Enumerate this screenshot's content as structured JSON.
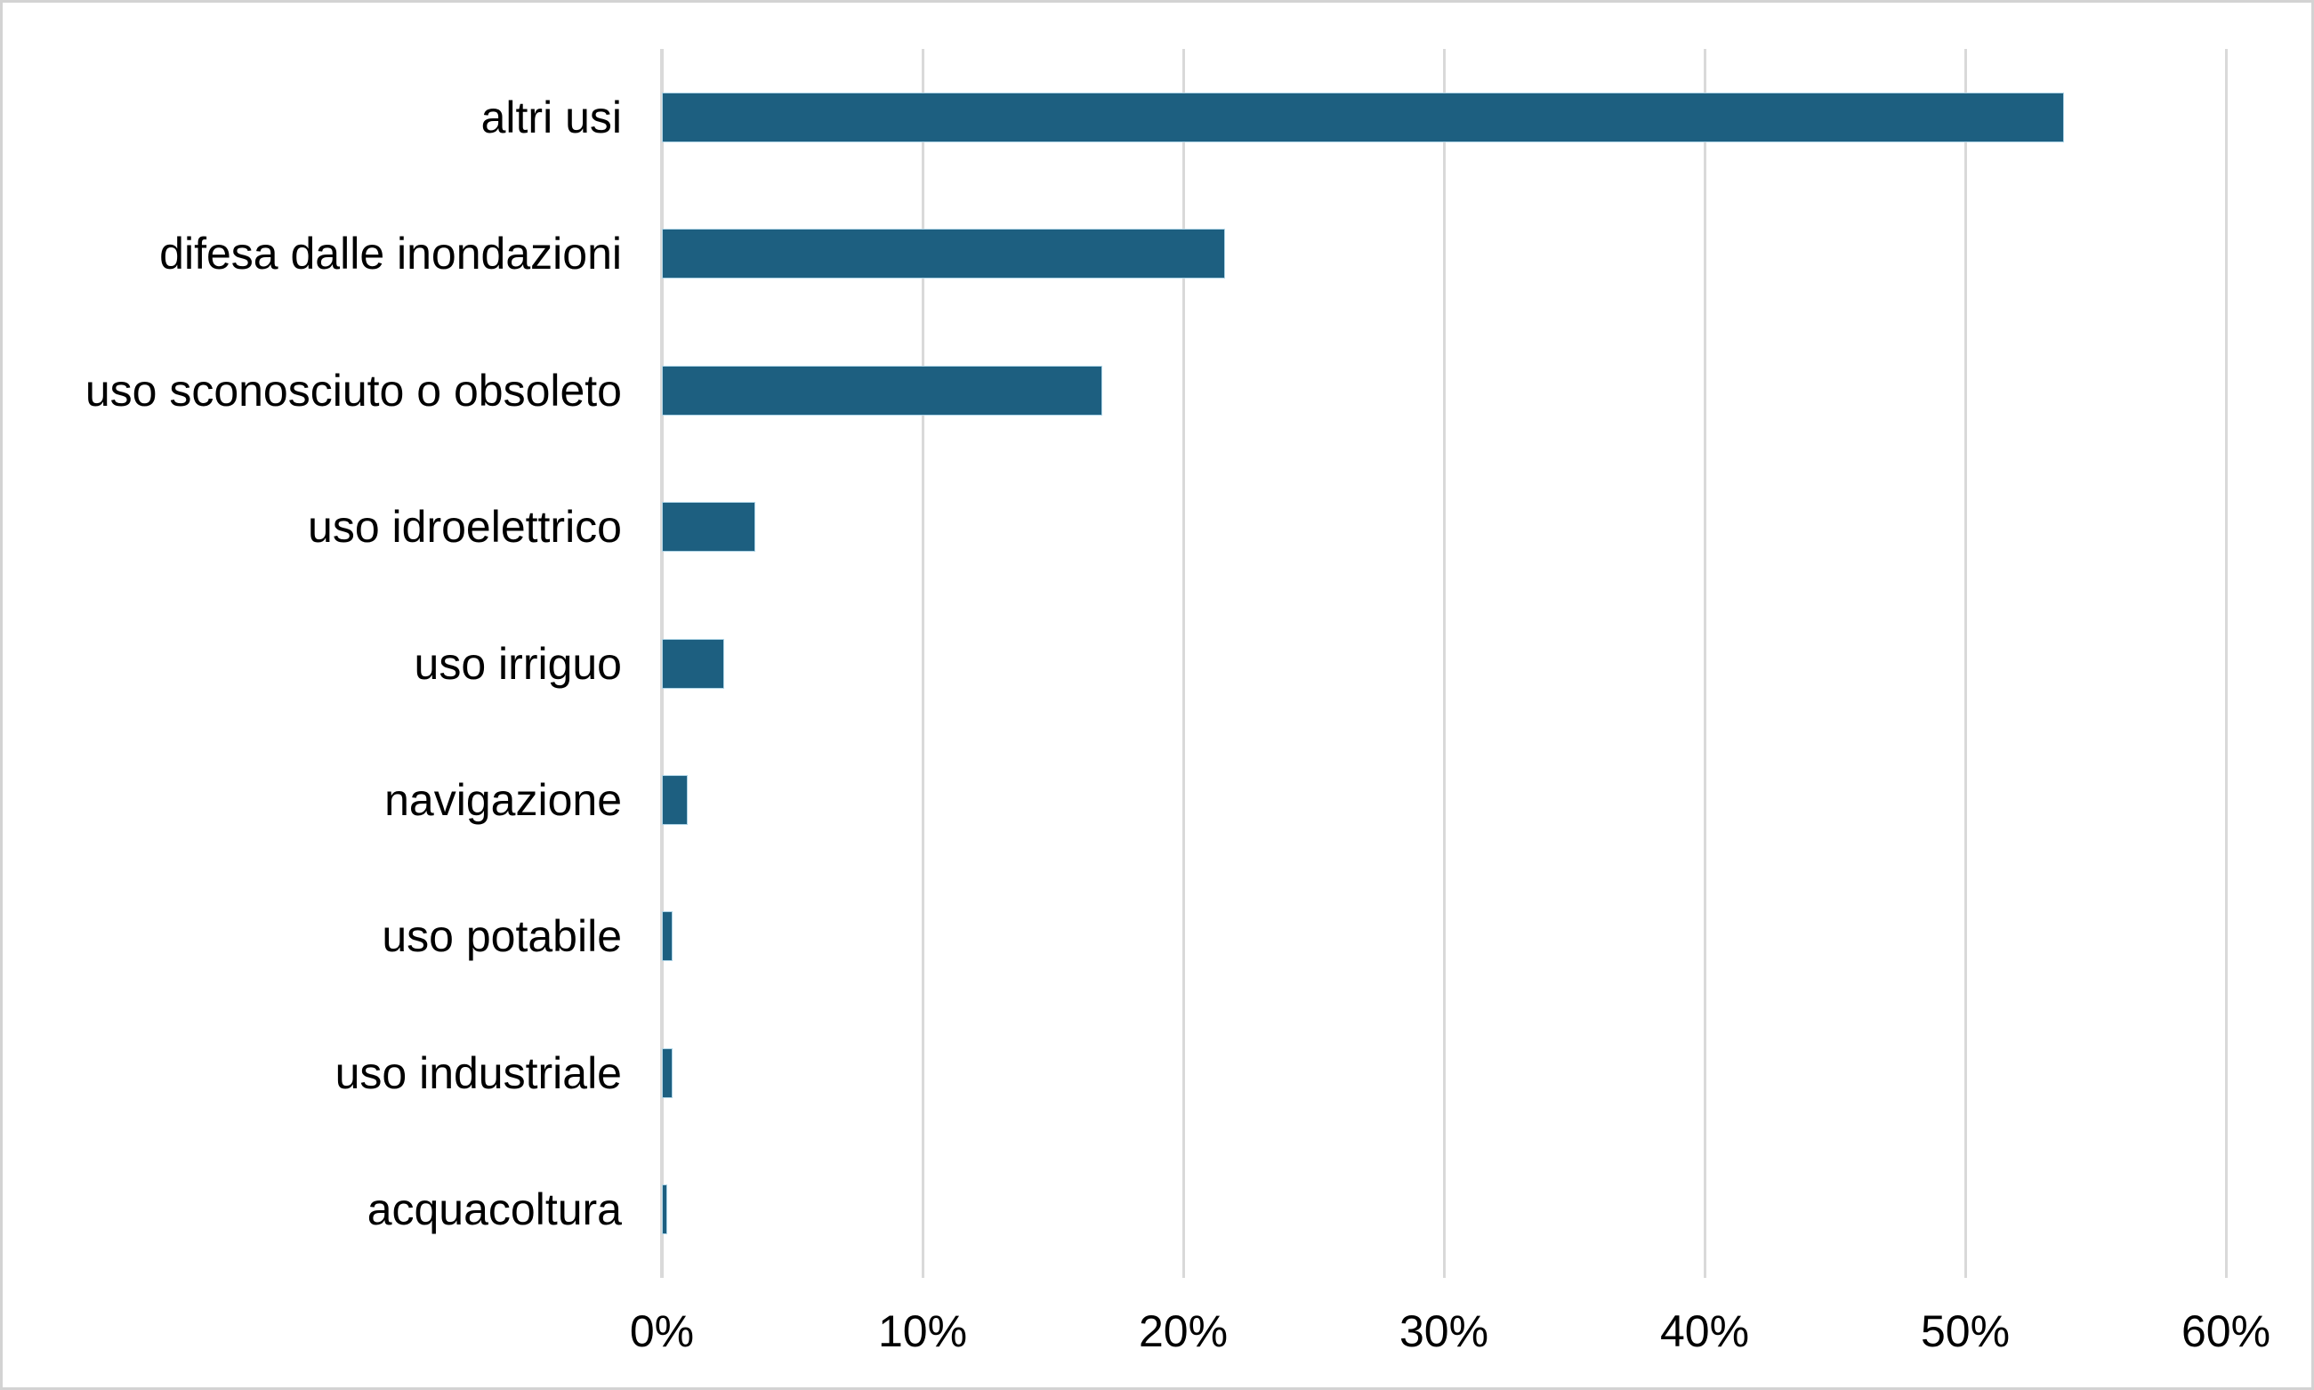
{
  "chart_data": {
    "type": "bar",
    "orientation": "horizontal",
    "title": "",
    "xlabel": "",
    "ylabel": "",
    "categories": [
      "altri usi",
      "difesa dalle inondazioni",
      "uso sconosciuto o obsoleto",
      "uso idroelettrico",
      "uso irriguo",
      "navigazione",
      "uso potabile",
      "uso industriale",
      "acquacoltura"
    ],
    "values": [
      53.8,
      21.6,
      16.9,
      3.6,
      2.4,
      1.0,
      0.4,
      0.4,
      0.2
    ],
    "value_unit": "%",
    "x_ticks": [
      "0%",
      "10%",
      "20%",
      "30%",
      "40%",
      "50%",
      "60%"
    ],
    "x_tick_values": [
      0,
      10,
      20,
      30,
      40,
      50,
      60
    ],
    "xlim": [
      0,
      60
    ],
    "grid": "vertical-only",
    "legend": "none",
    "colors": {
      "bar_fill": "#1D5F80",
      "bar_border": "#AED4E6",
      "gridline": "#D9D9D9",
      "axis_line": "#D9D9D9",
      "text": "#000000",
      "background": "#FFFFFF",
      "frame_border": "#D3D3D3"
    }
  }
}
